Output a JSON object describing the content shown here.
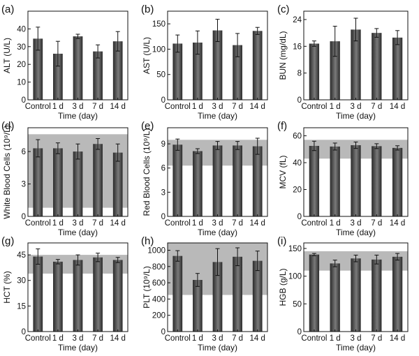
{
  "chart_data": [
    {
      "panel": "(a)",
      "type": "bar",
      "ylabel": "ALT (U/L)",
      "xlabel": "Time (day)",
      "categories": [
        "Control",
        "1 d",
        "3 d",
        "7 d",
        "14 d"
      ],
      "values": [
        34.5,
        26,
        35.8,
        27.3,
        33
      ],
      "errors": [
        6.5,
        7,
        1.2,
        3.7,
        5.5
      ],
      "ylim": [
        0,
        50
      ],
      "yticks": [
        0,
        10,
        20,
        30,
        40
      ],
      "ytick_labels": [
        "0",
        "10",
        "20",
        "30",
        "40"
      ],
      "reference_range": null
    },
    {
      "panel": "(b)",
      "type": "bar",
      "ylabel": "AST (U/L)",
      "xlabel": "Time (day)",
      "categories": [
        "Control",
        "1 d",
        "3 d",
        "7 d",
        "14 d"
      ],
      "values": [
        111,
        113,
        137,
        108,
        136
      ],
      "errors": [
        17,
        23,
        22,
        23,
        7
      ],
      "ylim": [
        0,
        175
      ],
      "yticks": [
        0,
        50,
        100,
        150
      ],
      "ytick_labels": [
        "0",
        "50",
        "100",
        "150"
      ],
      "reference_range": null
    },
    {
      "panel": "(c)",
      "type": "bar",
      "ylabel": "BUN (mg/dL)",
      "xlabel": "Time (day)",
      "categories": [
        "Control",
        "1 d",
        "3 d",
        "7 d",
        "14 d"
      ],
      "values": [
        16.8,
        17.5,
        21,
        20,
        18.6
      ],
      "errors": [
        0.8,
        4.5,
        3.4,
        1.3,
        2.1
      ],
      "ylim": [
        0,
        26.5
      ],
      "yticks": [
        0,
        8,
        16,
        24
      ],
      "ytick_labels": [
        "0",
        "8",
        "16",
        "24"
      ],
      "reference_range": null
    },
    {
      "panel": "(d)",
      "type": "bar",
      "ylabel": "White Blood Cells (10⁹/L)",
      "xlabel": "Time (day)",
      "categories": [
        "Control",
        "1 d",
        "3 d",
        "7 d",
        "14 d"
      ],
      "values": [
        6.3,
        6.3,
        6.0,
        6.7,
        5.9
      ],
      "errors": [
        0.8,
        0.5,
        0.7,
        0.5,
        0.8
      ],
      "ylim": [
        0,
        8.2
      ],
      "yticks": [
        0,
        3,
        6
      ],
      "ytick_labels": [
        "0",
        "3",
        "6"
      ],
      "reference_range": [
        0.8,
        7.6
      ]
    },
    {
      "panel": "(e)",
      "type": "bar",
      "ylabel": "Red Blood Cells (10⁹/L)",
      "xlabel": "Time (day)",
      "categories": [
        "Control",
        "1 d",
        "3 d",
        "7 d",
        "14 d"
      ],
      "values": [
        8.9,
        8.1,
        8.8,
        8.8,
        8.7
      ],
      "errors": [
        0.7,
        0.3,
        0.5,
        0.5,
        1.0
      ],
      "ylim": [
        0,
        11
      ],
      "yticks": [
        0,
        3,
        6,
        9
      ],
      "ytick_labels": [
        "0",
        "3",
        "6",
        "9"
      ],
      "reference_range": [
        6.3,
        9.5
      ]
    },
    {
      "panel": "(f)",
      "type": "bar",
      "ylabel": "MCV (fL)",
      "xlabel": "Time (day)",
      "categories": [
        "Control",
        "1 d",
        "3 d",
        "7 d",
        "14 d"
      ],
      "values": [
        52.5,
        52,
        53,
        52.3,
        51
      ],
      "errors": [
        3.5,
        2.6,
        2.4,
        1.8,
        1.6
      ],
      "ylim": [
        0,
        66
      ],
      "yticks": [
        0,
        20,
        40,
        60
      ],
      "ytick_labels": [
        "0",
        "20",
        "40",
        "60"
      ],
      "reference_range": [
        43,
        57
      ]
    },
    {
      "panel": "(g)",
      "type": "bar",
      "ylabel": "HCT (%)",
      "xlabel": "Time (day)",
      "categories": [
        "Control",
        "1 d",
        "3 d",
        "7 d",
        "14 d"
      ],
      "values": [
        44,
        41,
        42,
        43.5,
        42
      ],
      "errors": [
        4.5,
        1.3,
        3,
        2.5,
        1.5
      ],
      "ylim": [
        0,
        52
      ],
      "yticks": [
        0,
        15,
        30,
        45
      ],
      "ytick_labels": [
        "0",
        "15",
        "30",
        "45"
      ],
      "reference_range": [
        34,
        45
      ]
    },
    {
      "panel": "(h)",
      "type": "bar",
      "ylabel": "PLT (10⁹/L)",
      "xlabel": "Time (day)",
      "categories": [
        "Control",
        "1 d",
        "3 d",
        "7 d",
        "14 d"
      ],
      "values": [
        930,
        635,
        855,
        920,
        870
      ],
      "errors": [
        65,
        80,
        165,
        110,
        120
      ],
      "ylim": [
        0,
        1090
      ],
      "yticks": [
        0,
        200,
        400,
        600,
        800,
        1000
      ],
      "ytick_labels": [
        "0",
        "200",
        "400",
        "600",
        "800",
        "1000"
      ],
      "reference_range": [
        450,
        1090
      ]
    },
    {
      "panel": "(i)",
      "type": "bar",
      "ylabel": "HGB (g/L)",
      "xlabel": "Time (day)",
      "categories": [
        "Control",
        "1 d",
        "3 d",
        "7 d",
        "14 d"
      ],
      "values": [
        139,
        123,
        132,
        130,
        135
      ],
      "errors": [
        2,
        6,
        6,
        8,
        6
      ],
      "ylim": [
        0,
        160
      ],
      "yticks": [
        0,
        50,
        100,
        150
      ],
      "ytick_labels": [
        "0",
        "50",
        "100",
        "150"
      ],
      "reference_range": [
        110,
        145
      ]
    }
  ],
  "colors": {
    "bar_dark": "#2a2a2a",
    "bar_mid": "#7a7a7a",
    "reference_band": "#b9b9b9",
    "axis": "#111111"
  }
}
